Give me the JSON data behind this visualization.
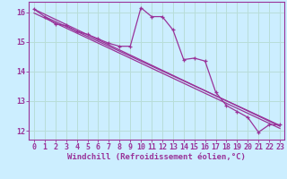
{
  "background_color": "#cceeff",
  "plot_bg_color": "#cceeff",
  "line_color": "#993399",
  "marker_color": "#993399",
  "grid_color": "#b8ddd8",
  "xlabel": "Windchill (Refroidissement éolien,°C)",
  "ylabel": "",
  "xlim": [
    -0.5,
    23.4
  ],
  "ylim": [
    11.7,
    16.35
  ],
  "yticks": [
    12,
    13,
    14,
    15,
    16
  ],
  "xticks": [
    0,
    1,
    2,
    3,
    4,
    5,
    6,
    7,
    8,
    9,
    10,
    11,
    12,
    13,
    14,
    15,
    16,
    17,
    18,
    19,
    20,
    21,
    22,
    23
  ],
  "series": [
    [
      0,
      16.1
    ],
    [
      1,
      15.85
    ],
    [
      2,
      15.6
    ],
    [
      3,
      15.55
    ],
    [
      4,
      15.35
    ],
    [
      5,
      15.25
    ],
    [
      6,
      15.1
    ],
    [
      7,
      14.95
    ],
    [
      8,
      14.85
    ],
    [
      9,
      14.85
    ],
    [
      10,
      16.15
    ],
    [
      11,
      15.85
    ],
    [
      12,
      15.85
    ],
    [
      13,
      15.4
    ],
    [
      14,
      14.4
    ],
    [
      15,
      14.45
    ],
    [
      16,
      14.35
    ],
    [
      17,
      13.3
    ],
    [
      18,
      12.85
    ],
    [
      19,
      12.65
    ],
    [
      20,
      12.45
    ],
    [
      21,
      11.95
    ],
    [
      22,
      12.2
    ],
    [
      23,
      12.2
    ]
  ],
  "trend_lines": [
    [
      [
        0,
        16.1
      ],
      [
        23,
        12.15
      ]
    ],
    [
      [
        0,
        15.97
      ],
      [
        23,
        12.08
      ]
    ],
    [
      [
        1,
        15.85
      ],
      [
        23,
        12.18
      ]
    ]
  ],
  "font_family": "monospace",
  "xlabel_fontsize": 6.5,
  "tick_fontsize": 6.0,
  "title": ""
}
